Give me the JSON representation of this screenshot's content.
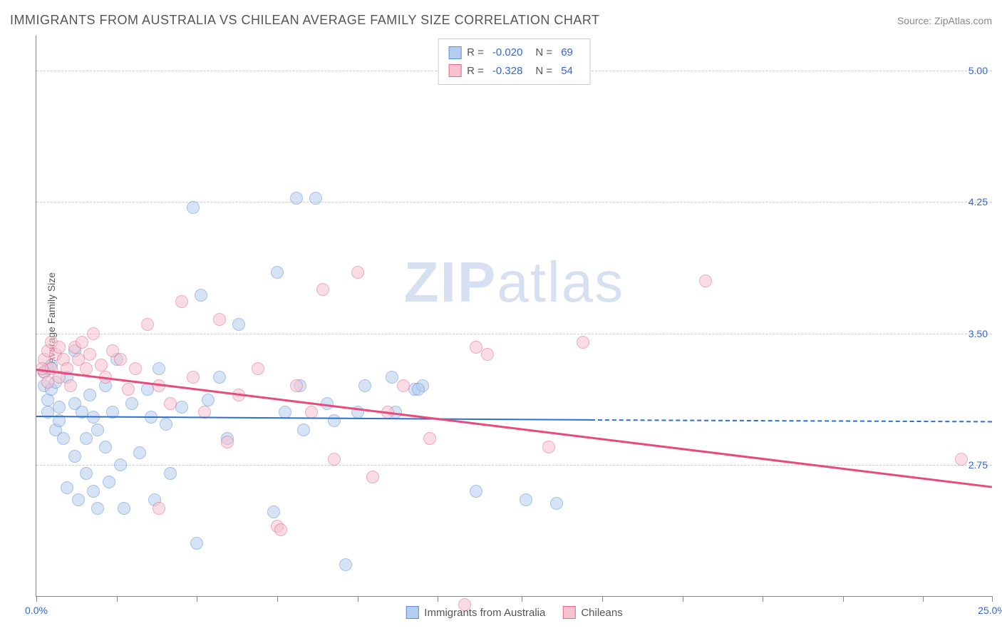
{
  "title": "IMMIGRANTS FROM AUSTRALIA VS CHILEAN AVERAGE FAMILY SIZE CORRELATION CHART",
  "source_label": "Source: ZipAtlas.com",
  "y_axis_label": "Average Family Size",
  "watermark_bold": "ZIP",
  "watermark_light": "atlas",
  "chart": {
    "type": "scatter",
    "background_color": "#ffffff",
    "grid_color": "#cccccc",
    "axis_color": "#888888",
    "xlim": [
      0.0,
      25.0
    ],
    "ylim": [
      2.0,
      5.2
    ],
    "x_tick_positions": [
      0,
      2.1,
      4.2,
      6.3,
      8.4,
      10.5,
      12.7,
      14.8,
      16.9,
      19.0,
      21.1,
      23.2,
      25.0
    ],
    "x_tick_labels_shown": {
      "0": "0.0%",
      "25": "25.0%"
    },
    "y_ticks": [
      2.75,
      3.5,
      4.25,
      5.0
    ],
    "y_tick_labels": [
      "2.75",
      "3.50",
      "4.25",
      "5.00"
    ],
    "marker_radius": 9,
    "marker_stroke_width": 1,
    "series": [
      {
        "id": "australia",
        "label": "Immigrants from Australia",
        "fill_color": "#b5cdee",
        "stroke_color": "#5e8fd6",
        "fill_opacity": 0.55,
        "R": "-0.020",
        "N": "69",
        "trend": {
          "x1": 0.0,
          "y1": 3.03,
          "x2": 14.5,
          "y2": 3.01,
          "color": "#2e6fd3",
          "width": 2,
          "dashed_extension": {
            "x2": 25.0,
            "y2": 3.0
          }
        },
        "points": [
          [
            0.2,
            3.28
          ],
          [
            0.2,
            3.2
          ],
          [
            0.3,
            3.3
          ],
          [
            0.3,
            3.12
          ],
          [
            0.3,
            3.05
          ],
          [
            0.4,
            3.18
          ],
          [
            0.4,
            3.32
          ],
          [
            0.5,
            2.95
          ],
          [
            0.5,
            3.22
          ],
          [
            0.6,
            3.08
          ],
          [
            0.6,
            3.0
          ],
          [
            0.7,
            2.9
          ],
          [
            0.8,
            3.25
          ],
          [
            0.8,
            2.62
          ],
          [
            1.0,
            3.4
          ],
          [
            1.0,
            3.1
          ],
          [
            1.0,
            2.8
          ],
          [
            1.1,
            2.55
          ],
          [
            1.2,
            3.05
          ],
          [
            1.3,
            2.9
          ],
          [
            1.3,
            2.7
          ],
          [
            1.4,
            3.15
          ],
          [
            1.5,
            3.02
          ],
          [
            1.5,
            2.6
          ],
          [
            1.6,
            2.95
          ],
          [
            1.6,
            2.5
          ],
          [
            1.8,
            3.2
          ],
          [
            1.8,
            2.85
          ],
          [
            1.9,
            2.65
          ],
          [
            2.0,
            3.05
          ],
          [
            2.1,
            3.35
          ],
          [
            2.2,
            2.75
          ],
          [
            2.3,
            2.5
          ],
          [
            2.5,
            3.1
          ],
          [
            2.7,
            2.82
          ],
          [
            2.9,
            3.18
          ],
          [
            3.0,
            3.02
          ],
          [
            3.1,
            2.55
          ],
          [
            3.2,
            3.3
          ],
          [
            3.4,
            2.98
          ],
          [
            3.5,
            2.7
          ],
          [
            3.8,
            3.08
          ],
          [
            4.1,
            4.22
          ],
          [
            4.2,
            2.3
          ],
          [
            4.3,
            3.72
          ],
          [
            4.5,
            3.12
          ],
          [
            4.8,
            3.25
          ],
          [
            5.0,
            2.9
          ],
          [
            5.3,
            3.55
          ],
          [
            6.2,
            2.48
          ],
          [
            6.3,
            3.85
          ],
          [
            6.5,
            3.05
          ],
          [
            6.8,
            4.27
          ],
          [
            6.9,
            3.2
          ],
          [
            7.0,
            2.95
          ],
          [
            7.3,
            4.27
          ],
          [
            7.6,
            3.1
          ],
          [
            7.8,
            3.0
          ],
          [
            8.1,
            2.18
          ],
          [
            8.4,
            3.05
          ],
          [
            8.6,
            3.2
          ],
          [
            9.3,
            3.25
          ],
          [
            9.4,
            3.05
          ],
          [
            9.9,
            3.18
          ],
          [
            10.1,
            3.2
          ],
          [
            11.5,
            2.6
          ],
          [
            12.8,
            2.55
          ],
          [
            13.6,
            2.53
          ],
          [
            10.0,
            3.18
          ]
        ]
      },
      {
        "id": "chileans",
        "label": "Chileans",
        "fill_color": "#f6c3cf",
        "stroke_color": "#e06a8a",
        "fill_opacity": 0.55,
        "R": "-0.328",
        "N": "54",
        "trend": {
          "x1": 0.0,
          "y1": 3.3,
          "x2": 25.0,
          "y2": 2.63,
          "color": "#e84a7a",
          "width": 2.5
        },
        "points": [
          [
            0.2,
            3.35
          ],
          [
            0.2,
            3.28
          ],
          [
            0.3,
            3.4
          ],
          [
            0.3,
            3.22
          ],
          [
            0.4,
            3.45
          ],
          [
            0.4,
            3.3
          ],
          [
            0.5,
            3.38
          ],
          [
            0.6,
            3.42
          ],
          [
            0.6,
            3.25
          ],
          [
            0.7,
            3.35
          ],
          [
            0.8,
            3.3
          ],
          [
            0.9,
            3.2
          ],
          [
            1.0,
            3.42
          ],
          [
            1.1,
            3.35
          ],
          [
            1.2,
            3.45
          ],
          [
            1.3,
            3.3
          ],
          [
            1.4,
            3.38
          ],
          [
            1.5,
            3.5
          ],
          [
            1.7,
            3.32
          ],
          [
            1.8,
            3.25
          ],
          [
            2.0,
            3.4
          ],
          [
            2.2,
            3.35
          ],
          [
            2.4,
            3.18
          ],
          [
            2.6,
            3.3
          ],
          [
            2.9,
            3.55
          ],
          [
            3.2,
            3.2
          ],
          [
            3.2,
            2.5
          ],
          [
            3.5,
            3.1
          ],
          [
            3.8,
            3.68
          ],
          [
            4.1,
            3.25
          ],
          [
            4.4,
            3.05
          ],
          [
            4.8,
            3.58
          ],
          [
            5.0,
            2.88
          ],
          [
            5.3,
            3.15
          ],
          [
            5.8,
            3.3
          ],
          [
            6.3,
            2.4
          ],
          [
            6.4,
            2.38
          ],
          [
            6.8,
            3.2
          ],
          [
            7.2,
            3.05
          ],
          [
            7.5,
            3.75
          ],
          [
            7.8,
            2.78
          ],
          [
            8.4,
            3.85
          ],
          [
            8.8,
            2.68
          ],
          [
            9.2,
            3.05
          ],
          [
            9.6,
            3.2
          ],
          [
            10.3,
            2.9
          ],
          [
            11.2,
            1.95
          ],
          [
            11.5,
            3.42
          ],
          [
            11.8,
            3.38
          ],
          [
            13.4,
            2.85
          ],
          [
            14.3,
            3.45
          ],
          [
            17.5,
            3.8
          ],
          [
            24.2,
            2.78
          ],
          [
            0.15,
            3.3
          ]
        ]
      }
    ]
  },
  "legend_top": {
    "R_label": "R =",
    "N_label": "N ="
  },
  "colors": {
    "text_primary": "#555555",
    "text_muted": "#888888",
    "value_blue": "#3465d4"
  }
}
